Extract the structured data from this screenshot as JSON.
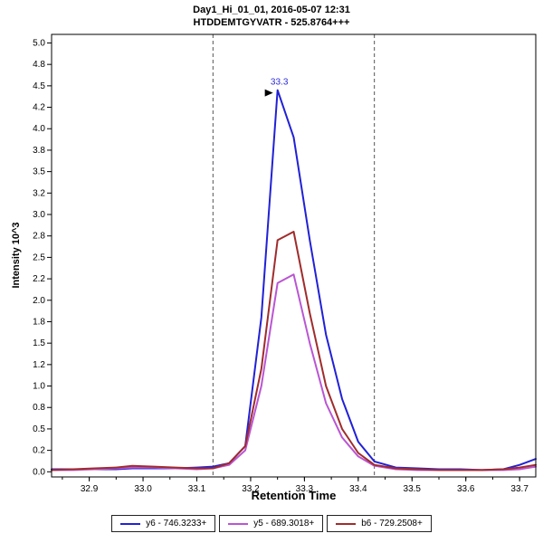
{
  "chart_data": {
    "type": "line",
    "title": "Day1_Hi_01_01, 2016-05-07 12:31",
    "subtitle": "HTDDEMTGYVATR - 525.8764+++",
    "xlabel": "Retention Time",
    "ylabel": "Intensity 10^3",
    "xlim": [
      32.83,
      33.73
    ],
    "ylim": [
      0,
      5.1
    ],
    "grid": false,
    "legend_position": "bottom",
    "x_ticks": {
      "values": [
        32.9,
        33.0,
        33.1,
        33.2,
        33.3,
        33.4,
        33.5,
        33.6,
        33.7
      ],
      "labels": [
        "32.9",
        "33.0",
        "33.1",
        "33.2",
        "33.3",
        "33.4",
        "33.5",
        "33.6",
        "33.7"
      ]
    },
    "y_ticks": {
      "values": [
        5.0,
        4.75,
        4.5,
        4.25,
        4.0,
        3.75,
        3.5,
        3.25,
        3.0,
        2.75,
        2.5,
        2.25,
        2.0,
        1.75,
        1.5,
        1.25,
        1.0,
        0.75,
        0.5,
        0.25,
        0.0
      ],
      "labels": [
        "5.0",
        "4.8",
        "4.5",
        "4.2",
        "4.0",
        "3.8",
        "3.5",
        "3.2",
        "3.0",
        "2.8",
        "2.5",
        "2.2",
        "2.0",
        "1.8",
        "1.5",
        "1.2",
        "1.0",
        "0.8",
        "0.5",
        "0.2",
        "0.0"
      ]
    },
    "x": [
      32.83,
      32.87,
      32.91,
      32.95,
      32.98,
      33.02,
      33.06,
      33.1,
      33.13,
      33.16,
      33.19,
      33.22,
      33.25,
      33.28,
      33.31,
      33.34,
      33.37,
      33.4,
      33.43,
      33.47,
      33.51,
      33.55,
      33.59,
      33.63,
      33.67,
      33.7,
      33.73
    ],
    "series": [
      {
        "key": "y6",
        "name": "y6 - 746.3233+",
        "color": "#2121d6",
        "values": [
          0.03,
          0.03,
          0.03,
          0.03,
          0.04,
          0.04,
          0.04,
          0.05,
          0.06,
          0.1,
          0.3,
          1.8,
          4.45,
          3.9,
          2.7,
          1.6,
          0.85,
          0.35,
          0.12,
          0.05,
          0.04,
          0.03,
          0.03,
          0.02,
          0.03,
          0.08,
          0.15
        ]
      },
      {
        "key": "y5",
        "name": "y5 - 689.3018+",
        "color": "#ba55d3",
        "values": [
          0.02,
          0.02,
          0.03,
          0.04,
          0.05,
          0.05,
          0.04,
          0.03,
          0.04,
          0.08,
          0.25,
          1.0,
          2.2,
          2.3,
          1.5,
          0.8,
          0.4,
          0.18,
          0.07,
          0.03,
          0.02,
          0.02,
          0.02,
          0.02,
          0.02,
          0.03,
          0.06
        ]
      },
      {
        "key": "b6",
        "name": "b6 - 729.2508+",
        "color": "#a02c2c",
        "values": [
          0.02,
          0.03,
          0.04,
          0.05,
          0.07,
          0.06,
          0.05,
          0.04,
          0.04,
          0.1,
          0.3,
          1.2,
          2.7,
          2.8,
          1.85,
          1.0,
          0.5,
          0.22,
          0.08,
          0.04,
          0.03,
          0.02,
          0.02,
          0.02,
          0.03,
          0.05,
          0.08
        ]
      }
    ],
    "peak_boundaries": [
      33.13,
      33.43
    ],
    "boundary_color": "#555555",
    "annotation": {
      "text": "33.3",
      "x": 33.25,
      "y": 4.45,
      "color": "#2a2ad6",
      "arrow_color": "#000000"
    },
    "axis_color": "#000000"
  }
}
